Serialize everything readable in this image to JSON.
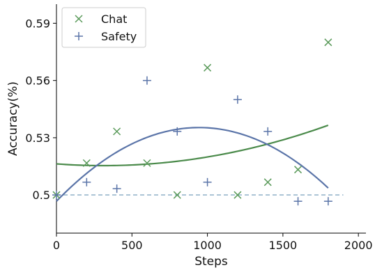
{
  "chart_data": {
    "type": "scatter",
    "title": "",
    "xlabel": "Steps",
    "ylabel": "Accuracy(%)",
    "xlim": [
      0,
      2050
    ],
    "ylim": [
      0.48,
      0.6
    ],
    "xticks": [
      0,
      500,
      1000,
      1500,
      2000
    ],
    "xtick_labels": [
      "0",
      "500",
      "1000",
      "1500",
      "2000"
    ],
    "yticks": [
      0.5,
      0.53,
      0.56,
      0.59
    ],
    "ytick_labels": [
      "0.5",
      "0.53",
      "0.56",
      "0.59"
    ],
    "legend": {
      "position": "top-left"
    },
    "grid": false,
    "series": [
      {
        "name": "Chat",
        "marker": "x",
        "color": "#5a9a5a",
        "points": [
          [
            0,
            0.5
          ],
          [
            200,
            0.5167
          ],
          [
            400,
            0.5333
          ],
          [
            600,
            0.5167
          ],
          [
            800,
            0.5
          ],
          [
            1000,
            0.5667
          ],
          [
            1200,
            0.5
          ],
          [
            1400,
            0.5067
          ],
          [
            1600,
            0.5133
          ],
          [
            1800,
            0.58
          ]
        ],
        "trend": {
          "color": "#4a8a4a",
          "coefficients": [
            0.5163,
            -5.93e-06,
            9.54e-09
          ],
          "x_range": [
            0,
            1800
          ]
        }
      },
      {
        "name": "Safety",
        "marker": "+",
        "color": "#5a74a8",
        "points": [
          [
            0,
            0.5
          ],
          [
            200,
            0.5067
          ],
          [
            400,
            0.5033
          ],
          [
            600,
            0.56
          ],
          [
            800,
            0.5333
          ],
          [
            1000,
            0.5067
          ],
          [
            1200,
            0.55
          ],
          [
            1400,
            0.5333
          ],
          [
            1600,
            0.4967
          ],
          [
            1800,
            0.4967
          ]
        ],
        "trend": {
          "color": "#5a74a8",
          "coefficients": [
            0.4967,
            8.18e-05,
            -4.33e-08
          ],
          "x_range": [
            0,
            1800
          ]
        }
      }
    ],
    "baseline": {
      "y": 0.5,
      "x_range": [
        0,
        1900
      ],
      "color": "#8fb0c8",
      "style": "dashed"
    }
  }
}
